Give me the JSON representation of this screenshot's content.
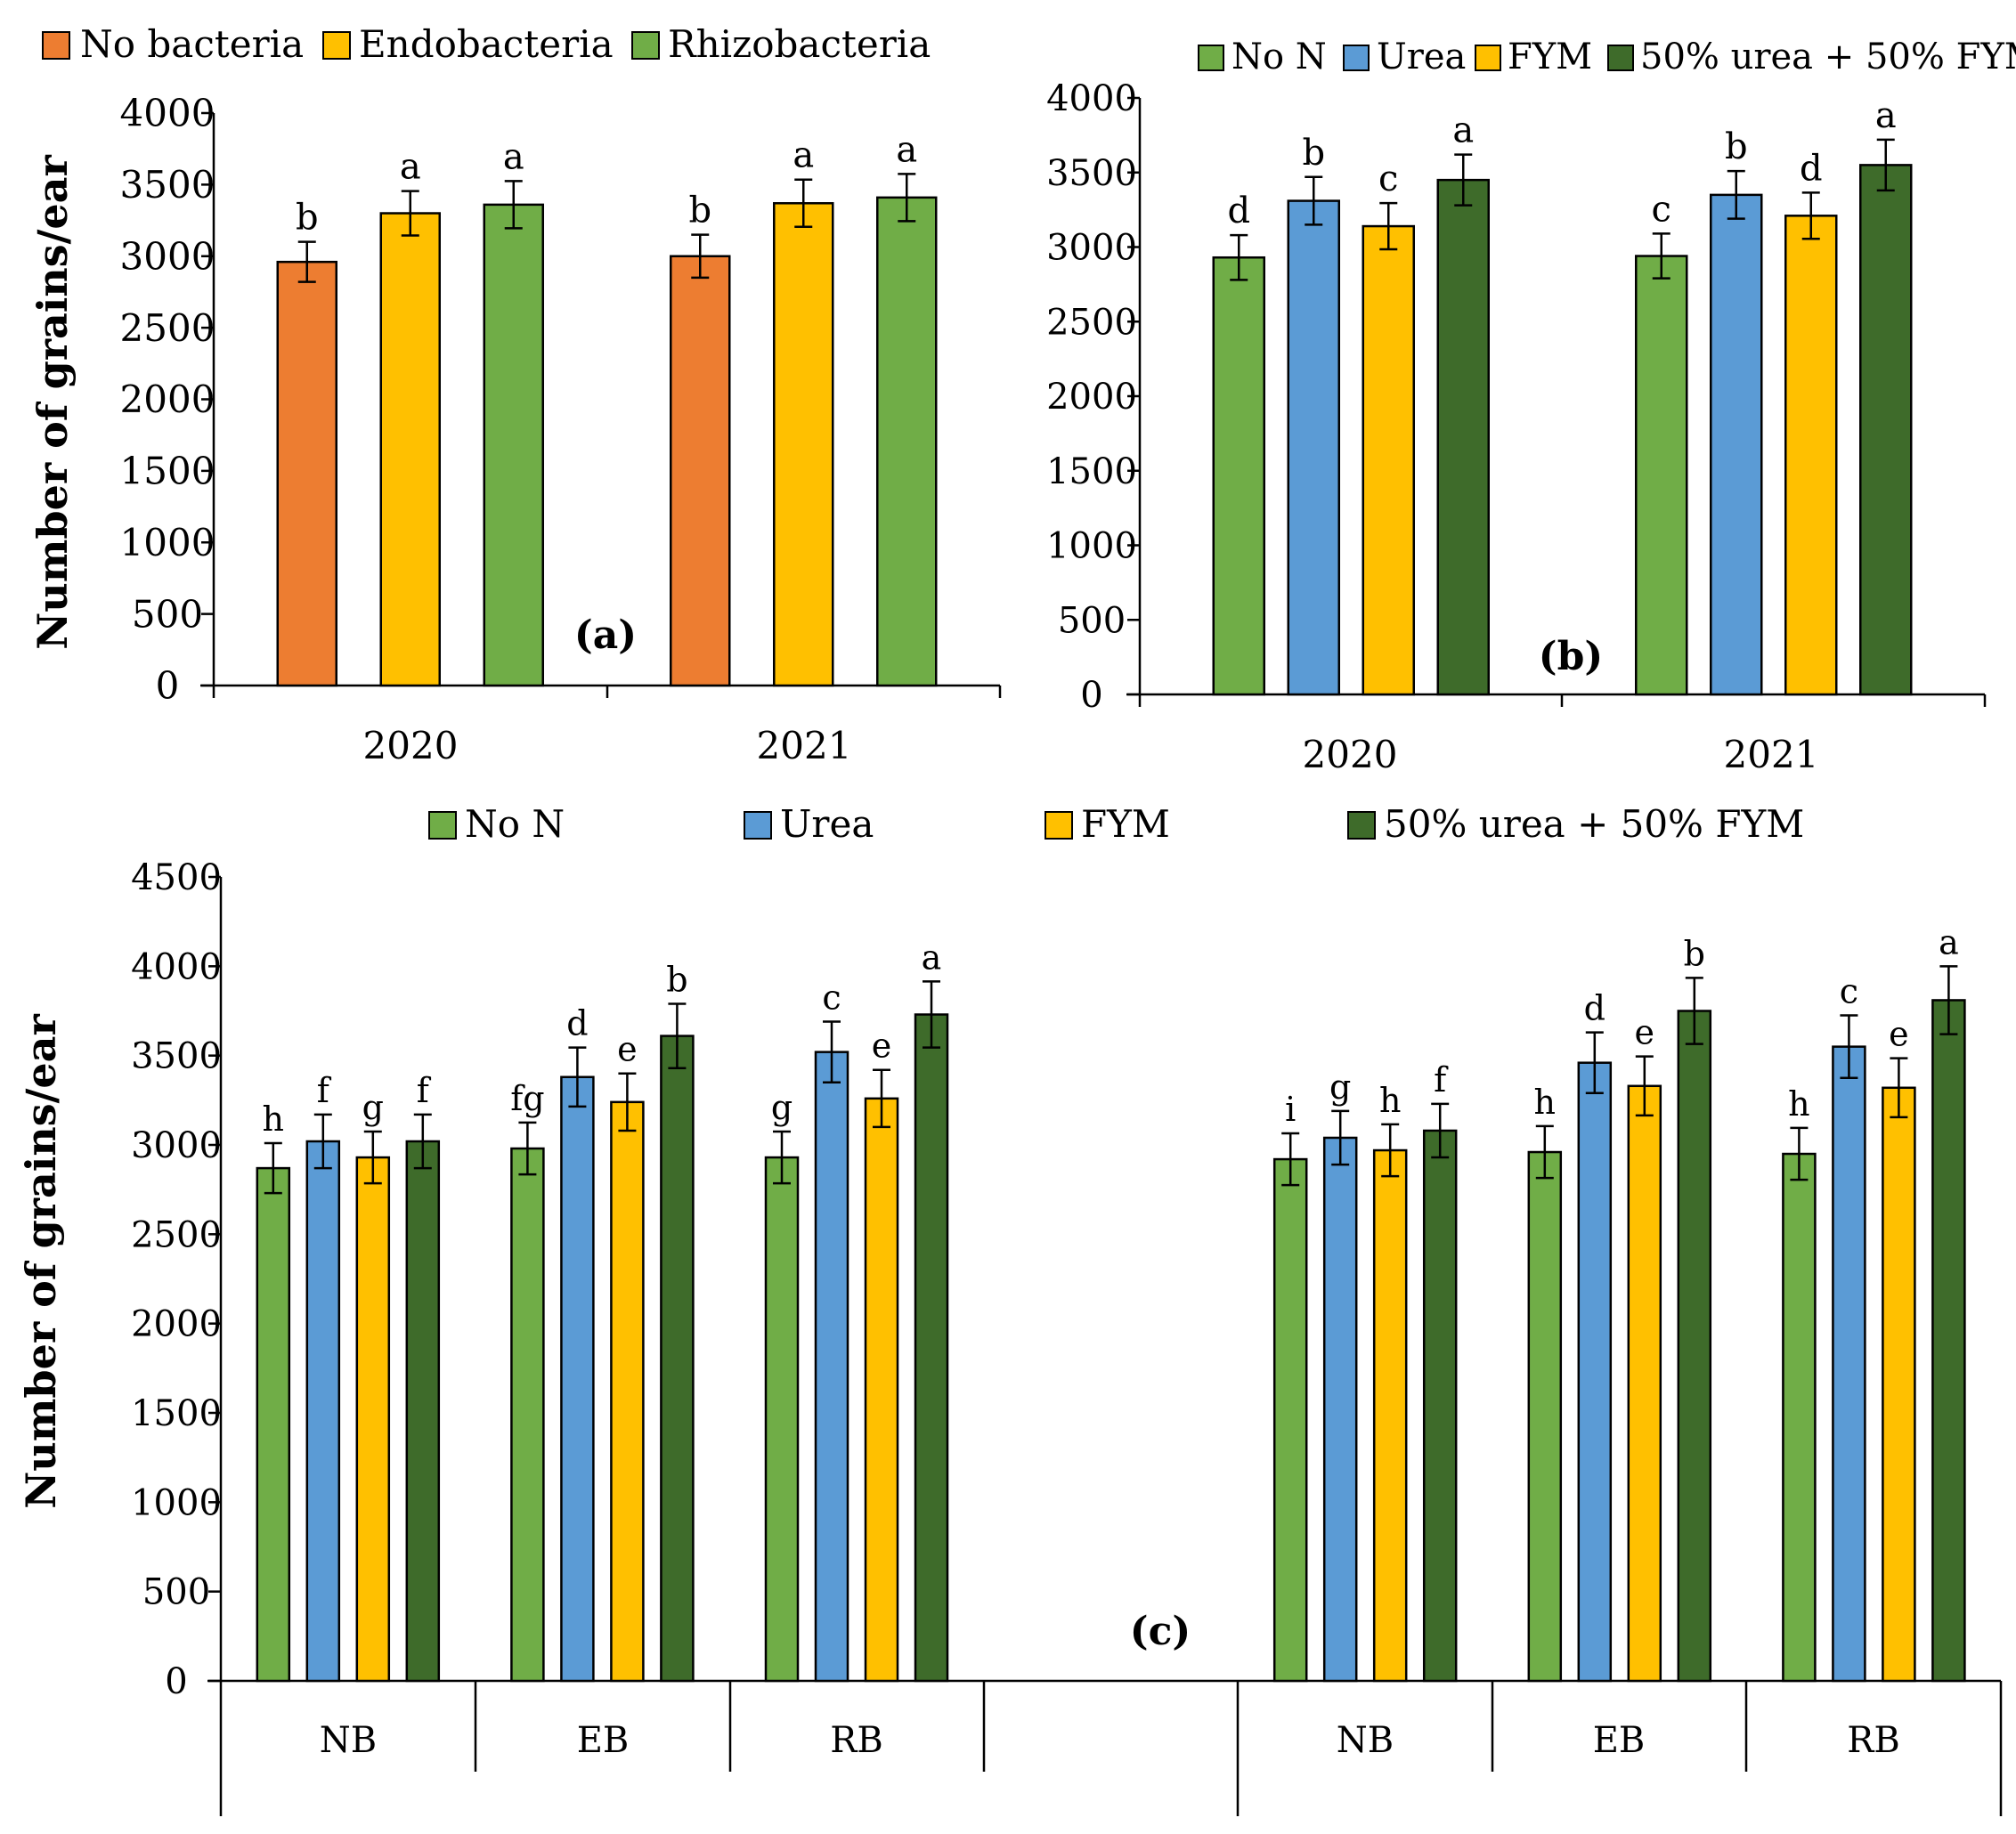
{
  "colors": {
    "orange": "#ED7D31",
    "gold": "#FFC000",
    "light_green": "#70AD47",
    "blue": "#5B9BD5",
    "dark_green": "#3E6B2A"
  },
  "chart_data": [
    {
      "id": "a",
      "type": "bar",
      "panel_label": "(a)",
      "ylabel": "Number of grains/ear",
      "xlabel": "",
      "ylim": [
        0,
        4000
      ],
      "yticks": [
        0,
        500,
        1000,
        1500,
        2000,
        2500,
        3000,
        3500,
        4000
      ],
      "categories": [
        "2020",
        "2021"
      ],
      "series": [
        {
          "name": "No bacteria",
          "color": "#ED7D31",
          "values": [
            2960,
            3000
          ],
          "errors": [
            140,
            150
          ],
          "letters": [
            "b",
            "b"
          ]
        },
        {
          "name": "Endobacteria",
          "color": "#FFC000",
          "values": [
            3300,
            3370
          ],
          "errors": [
            155,
            165
          ],
          "letters": [
            "a",
            "a"
          ]
        },
        {
          "name": "Rhizobacteria",
          "color": "#70AD47",
          "values": [
            3360,
            3410
          ],
          "errors": [
            165,
            165
          ],
          "letters": [
            "a",
            "a"
          ]
        }
      ],
      "legend_position": "top"
    },
    {
      "id": "b",
      "type": "bar",
      "panel_label": "(b)",
      "ylabel": "",
      "xlabel": "",
      "ylim": [
        0,
        4000
      ],
      "yticks": [
        0,
        500,
        1000,
        1500,
        2000,
        2500,
        3000,
        3500,
        4000
      ],
      "categories": [
        "2020",
        "2021"
      ],
      "series": [
        {
          "name": "No N",
          "color": "#70AD47",
          "values": [
            2930,
            2940
          ],
          "errors": [
            150,
            150
          ],
          "letters": [
            "d",
            "c"
          ]
        },
        {
          "name": "Urea",
          "color": "#5B9BD5",
          "values": [
            3310,
            3350
          ],
          "errors": [
            160,
            160
          ],
          "letters": [
            "b",
            "b"
          ]
        },
        {
          "name": "FYM",
          "color": "#FFC000",
          "values": [
            3140,
            3210
          ],
          "errors": [
            155,
            155
          ],
          "letters": [
            "c",
            "d"
          ]
        },
        {
          "name": "50% urea + 50% FYM",
          "color": "#3E6B2A",
          "values": [
            3450,
            3550
          ],
          "errors": [
            170,
            170
          ],
          "letters": [
            "a",
            "a"
          ]
        }
      ],
      "legend_position": "top"
    },
    {
      "id": "c",
      "type": "bar",
      "panel_label": "(c)",
      "ylabel": "Number of grains/ear",
      "xlabel": "",
      "ylim": [
        0,
        4500
      ],
      "yticks": [
        0,
        500,
        1000,
        1500,
        2000,
        2500,
        3000,
        3500,
        4000,
        4500
      ],
      "categories": [
        "NB",
        "EB",
        "RB",
        "",
        "NB",
        "EB",
        "RB"
      ],
      "series": [
        {
          "name": "No N",
          "color": "#70AD47",
          "values": [
            2870,
            2980,
            2930,
            null,
            2920,
            2960,
            2950
          ],
          "errors": [
            140,
            145,
            145,
            null,
            145,
            145,
            145
          ],
          "letters": [
            "h",
            "fg",
            "g",
            "",
            "i",
            "h",
            "h"
          ]
        },
        {
          "name": "Urea",
          "color": "#5B9BD5",
          "values": [
            3020,
            3380,
            3520,
            null,
            3040,
            3460,
            3550
          ],
          "errors": [
            150,
            165,
            170,
            null,
            150,
            170,
            175
          ],
          "letters": [
            "f",
            "d",
            "c",
            "",
            "g",
            "d",
            "c"
          ]
        },
        {
          "name": "FYM",
          "color": "#FFC000",
          "values": [
            2930,
            3240,
            3260,
            null,
            2970,
            3330,
            3320
          ],
          "errors": [
            145,
            160,
            160,
            null,
            145,
            165,
            165
          ],
          "letters": [
            "g",
            "e",
            "e",
            "",
            "h",
            "e",
            "e"
          ]
        },
        {
          "name": "50% urea + 50% FYM",
          "color": "#3E6B2A",
          "values": [
            3020,
            3610,
            3730,
            null,
            3080,
            3750,
            3810
          ],
          "errors": [
            150,
            180,
            185,
            null,
            150,
            185,
            190
          ],
          "letters": [
            "f",
            "b",
            "a",
            "",
            "f",
            "b",
            "a"
          ]
        }
      ],
      "legend_position": "top"
    }
  ]
}
